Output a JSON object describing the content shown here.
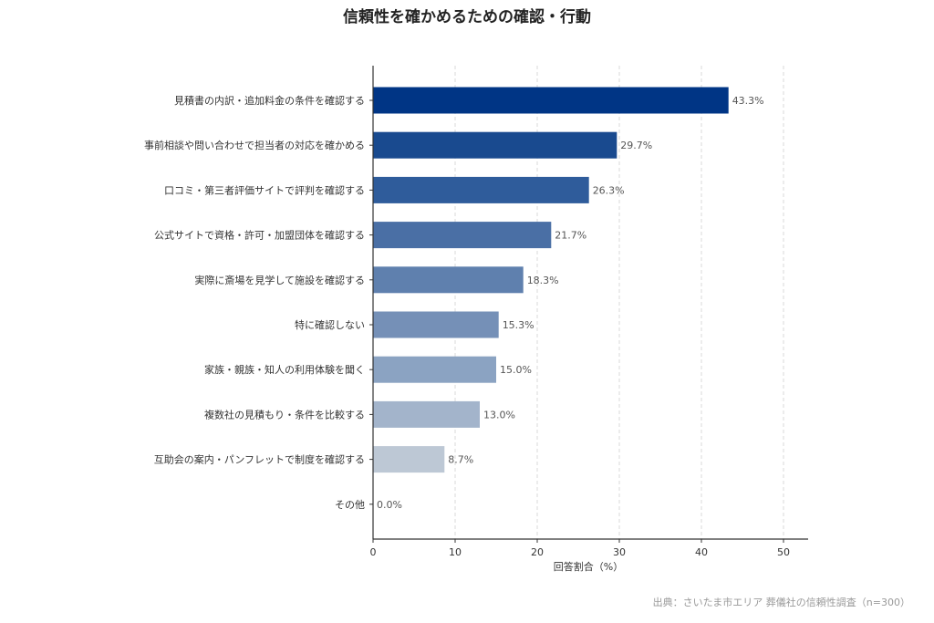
{
  "chart_data": {
    "type": "bar",
    "orientation": "horizontal",
    "title": "信頼性を確かめるための確認・行動",
    "xlabel": "回答割合（%）",
    "ylabel": "",
    "xlim": [
      0,
      53
    ],
    "xticks": [
      0,
      10,
      20,
      30,
      40,
      50
    ],
    "grid": "vertical-dashed",
    "categories": [
      "見積書の内訳・追加料金の条件を確認する",
      "事前相談や問い合わせで担当者の対応を確かめる",
      "口コミ・第三者評価サイトで評判を確認する",
      "公式サイトで資格・許可・加盟団体を確認する",
      "実際に斎場を見学して施設を確認する",
      "特に確認しない",
      "家族・親族・知人の利用体験を聞く",
      "複数社の見積もり・条件を比較する",
      "互助会の案内・パンフレットで制度を確認する",
      "その他"
    ],
    "values": [
      43.3,
      29.7,
      26.3,
      21.7,
      18.3,
      15.3,
      15.0,
      13.0,
      8.7,
      0.0
    ],
    "value_labels": [
      "43.3%",
      "29.7%",
      "26.3%",
      "21.7%",
      "18.3%",
      "15.3%",
      "15.0%",
      "13.0%",
      "8.7%",
      "0.0%"
    ],
    "colors": [
      "#003585",
      "#194a8f",
      "#2f5c9b",
      "#4a6fa5",
      "#5f80ae",
      "#7590b7",
      "#8ba3c2",
      "#a3b4cb",
      "#bdc8d5",
      "#d5dbe3"
    ],
    "source": "出典：さいたま市エリア 葬儀社の信頼性調査（n=300）"
  }
}
